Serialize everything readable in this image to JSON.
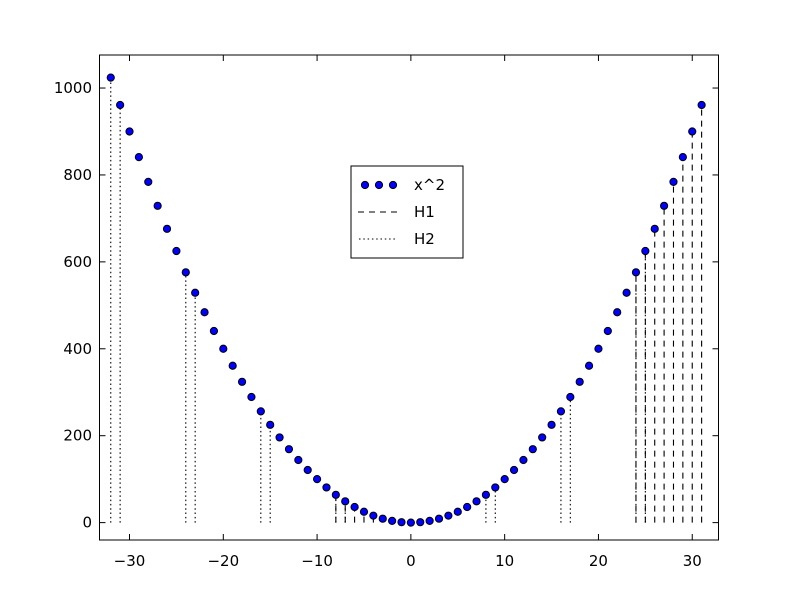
{
  "chart_data": {
    "type": "scatter",
    "title": "",
    "xlabel": "",
    "ylabel": "",
    "grid": false,
    "background_color": "#ffffff",
    "frame_color": "#000000",
    "series": [
      {
        "name": "x^2",
        "marker": "circle",
        "marker_fill": "#0000ff",
        "marker_edge": "#000000",
        "linestyle": "none",
        "x": [
          -32,
          -31,
          -30,
          -29,
          -28,
          -27,
          -26,
          -25,
          -24,
          -23,
          -22,
          -21,
          -20,
          -19,
          -18,
          -17,
          -16,
          -15,
          -14,
          -13,
          -12,
          -11,
          -10,
          -9,
          -8,
          -7,
          -6,
          -5,
          -4,
          -3,
          -2,
          -1,
          0,
          1,
          2,
          3,
          4,
          5,
          6,
          7,
          8,
          9,
          10,
          11,
          12,
          13,
          14,
          15,
          16,
          17,
          18,
          19,
          20,
          21,
          22,
          23,
          24,
          25,
          26,
          27,
          28,
          29,
          30,
          31
        ],
        "y": [
          1024,
          961,
          900,
          841,
          784,
          729,
          676,
          625,
          576,
          529,
          484,
          441,
          400,
          361,
          324,
          289,
          256,
          225,
          196,
          169,
          144,
          121,
          100,
          81,
          64,
          49,
          36,
          25,
          16,
          9,
          4,
          1,
          0,
          1,
          4,
          9,
          16,
          25,
          36,
          49,
          64,
          81,
          100,
          121,
          144,
          169,
          196,
          225,
          256,
          289,
          324,
          361,
          400,
          441,
          484,
          529,
          576,
          625,
          676,
          729,
          784,
          841,
          900,
          961
        ]
      }
    ],
    "vlines": [
      {
        "name": "H1",
        "style": "dashed",
        "color": "#000000",
        "y_from": 0,
        "y_to": "x^2",
        "x": [
          -8,
          -7,
          -6,
          -5,
          -4,
          24,
          25,
          26,
          27,
          28,
          29,
          30,
          31
        ]
      },
      {
        "name": "H2",
        "style": "dotted",
        "color": "#000000",
        "y_from": 0,
        "y_to": "x^2",
        "x": [
          -32,
          -31,
          -24,
          -23,
          -16,
          -15,
          -8,
          -7,
          8,
          9,
          16,
          17,
          24,
          25
        ]
      }
    ],
    "xlim": [
      -33.2,
      32.8
    ],
    "ylim": [
      -40,
      1076
    ],
    "xticks": {
      "values": [
        -30,
        -20,
        -10,
        0,
        10,
        20,
        30
      ],
      "labels": [
        "−30",
        "−20",
        "−10",
        "0",
        "10",
        "20",
        "30"
      ]
    },
    "yticks": {
      "values": [
        0,
        200,
        400,
        600,
        800,
        1000
      ],
      "labels": [
        "0",
        "200",
        "400",
        "600",
        "800",
        "1000"
      ]
    },
    "legend": {
      "position": "upper-center-inside",
      "entries": [
        {
          "label": "x^2",
          "type": "markers"
        },
        {
          "label": "H1",
          "type": "dashed-line"
        },
        {
          "label": "H2",
          "type": "dotted-line"
        }
      ]
    }
  }
}
